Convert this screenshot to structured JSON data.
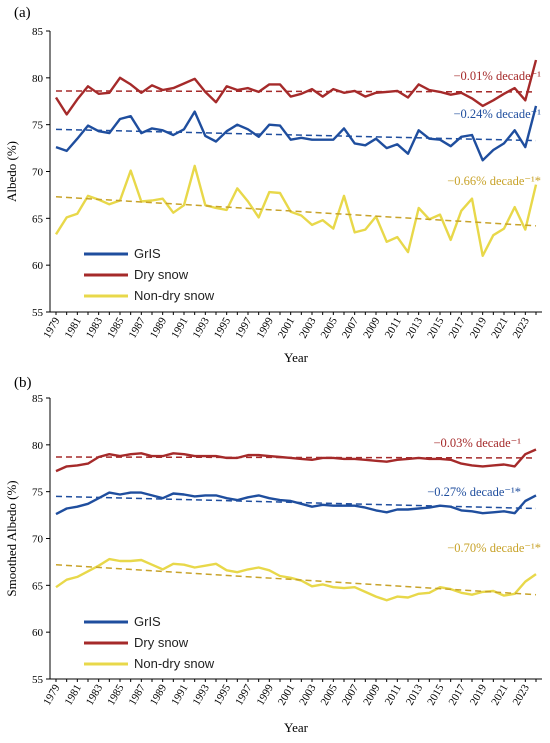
{
  "chart_data": [
    {
      "type": "line",
      "panel_label": "(a)",
      "xlabel": "Year",
      "ylabel": "Albedo (%)",
      "ylim": [
        55,
        85
      ],
      "yticks": [
        55,
        60,
        65,
        70,
        75,
        80,
        85
      ],
      "xlim": [
        1979,
        2024
      ],
      "x": [
        1979,
        1980,
        1981,
        1982,
        1983,
        1984,
        1985,
        1986,
        1987,
        1988,
        1989,
        1990,
        1991,
        1992,
        1993,
        1994,
        1995,
        1996,
        1997,
        1998,
        1999,
        2000,
        2001,
        2002,
        2003,
        2004,
        2005,
        2006,
        2007,
        2008,
        2009,
        2010,
        2011,
        2012,
        2013,
        2014,
        2015,
        2016,
        2017,
        2018,
        2019,
        2020,
        2021,
        2022,
        2023,
        2024
      ],
      "xtick_labels": [
        "1979",
        "1981",
        "1983",
        "1985",
        "1987",
        "1989",
        "1991",
        "1993",
        "1995",
        "1997",
        "1999",
        "2001",
        "2003",
        "2005",
        "2007",
        "2009",
        "2011",
        "2013",
        "2015",
        "2017",
        "2019",
        "2021",
        "2023"
      ],
      "legend": {
        "position": "lower-left",
        "entries": [
          "GrIS",
          "Dry snow",
          "Non-dry snow"
        ]
      },
      "series": [
        {
          "name": "GrIS",
          "color": "#1f4e9e",
          "values": [
            72.6,
            72.2,
            73.5,
            74.9,
            74.3,
            74.1,
            75.6,
            75.9,
            74.1,
            74.6,
            74.4,
            73.9,
            74.5,
            76.4,
            73.8,
            73.2,
            74.3,
            75.0,
            74.5,
            73.7,
            75.0,
            74.9,
            73.4,
            73.6,
            73.4,
            73.4,
            73.4,
            74.6,
            73.0,
            72.8,
            73.5,
            72.5,
            72.9,
            71.9,
            74.4,
            73.5,
            73.4,
            72.7,
            73.7,
            73.9,
            71.2,
            72.3,
            73.0,
            74.4,
            72.6,
            77.0
          ],
          "trend": {
            "start": 74.5,
            "end": 73.3,
            "label": "−0.24% decade⁻¹",
            "color": "#1f4e9e"
          }
        },
        {
          "name": "Dry snow",
          "color": "#a52a2a",
          "values": [
            77.9,
            76.1,
            77.7,
            79.1,
            78.3,
            78.4,
            80.0,
            79.3,
            78.4,
            79.2,
            78.7,
            78.9,
            79.4,
            79.9,
            78.5,
            77.4,
            79.1,
            78.7,
            78.9,
            78.5,
            79.3,
            79.3,
            78.0,
            78.3,
            78.8,
            78.0,
            78.8,
            78.4,
            78.6,
            78.0,
            78.4,
            78.5,
            78.6,
            77.9,
            79.3,
            78.7,
            78.5,
            78.2,
            78.4,
            77.8,
            77.0,
            77.6,
            78.3,
            78.9,
            77.6,
            81.9
          ],
          "trend": {
            "start": 78.6,
            "end": 78.5,
            "label": "−0.01% decade⁻¹",
            "color": "#a52a2a"
          }
        },
        {
          "name": "Non-dry snow",
          "color": "#e8d84a",
          "values": [
            63.3,
            65.1,
            65.5,
            67.4,
            67.0,
            66.5,
            66.9,
            70.1,
            66.8,
            66.9,
            67.1,
            65.6,
            66.4,
            70.6,
            66.4,
            66.1,
            65.9,
            68.2,
            66.8,
            65.1,
            67.8,
            67.7,
            65.7,
            65.3,
            64.3,
            64.8,
            63.9,
            67.4,
            63.5,
            63.8,
            65.2,
            62.5,
            63.0,
            61.4,
            66.1,
            64.9,
            65.4,
            62.7,
            65.8,
            67.1,
            61.0,
            63.2,
            63.9,
            66.2,
            63.8,
            68.6
          ],
          "trend": {
            "start": 67.3,
            "end": 64.2,
            "label": "−0.66% decade⁻¹*",
            "color": "#c8a32a"
          }
        }
      ]
    },
    {
      "type": "line",
      "panel_label": "(b)",
      "xlabel": "Year",
      "ylabel": "Smoothed Albedo (%)",
      "ylim": [
        55,
        85
      ],
      "yticks": [
        55,
        60,
        65,
        70,
        75,
        80,
        85
      ],
      "xlim": [
        1979,
        2024
      ],
      "x": [
        1979,
        1980,
        1981,
        1982,
        1983,
        1984,
        1985,
        1986,
        1987,
        1988,
        1989,
        1990,
        1991,
        1992,
        1993,
        1994,
        1995,
        1996,
        1997,
        1998,
        1999,
        2000,
        2001,
        2002,
        2003,
        2004,
        2005,
        2006,
        2007,
        2008,
        2009,
        2010,
        2011,
        2012,
        2013,
        2014,
        2015,
        2016,
        2017,
        2018,
        2019,
        2020,
        2021,
        2022,
        2023,
        2024
      ],
      "xtick_labels": [
        "1979",
        "1981",
        "1983",
        "1985",
        "1987",
        "1989",
        "1991",
        "1993",
        "1995",
        "1997",
        "1999",
        "2001",
        "2003",
        "2005",
        "2007",
        "2009",
        "2011",
        "2013",
        "2015",
        "2017",
        "2019",
        "2021",
        "2023"
      ],
      "legend": {
        "position": "lower-left",
        "entries": [
          "GrIS",
          "Dry snow",
          "Non-dry snow"
        ]
      },
      "series": [
        {
          "name": "GrIS",
          "color": "#1f4e9e",
          "values": [
            72.6,
            73.2,
            73.4,
            73.7,
            74.3,
            74.9,
            74.7,
            74.9,
            74.9,
            74.6,
            74.3,
            74.8,
            74.7,
            74.5,
            74.6,
            74.6,
            74.3,
            74.1,
            74.4,
            74.6,
            74.3,
            74.1,
            74.0,
            73.7,
            73.4,
            73.6,
            73.5,
            73.5,
            73.5,
            73.3,
            73.0,
            72.8,
            73.1,
            73.1,
            73.2,
            73.3,
            73.5,
            73.4,
            73.0,
            72.9,
            72.7,
            72.8,
            72.9,
            72.7,
            74.0,
            74.6
          ],
          "trend": {
            "start": 74.5,
            "end": 73.2,
            "label": "−0.27% decade⁻¹*",
            "color": "#1f4e9e"
          }
        },
        {
          "name": "Dry snow",
          "color": "#a52a2a",
          "values": [
            77.2,
            77.7,
            77.8,
            78.0,
            78.7,
            79.0,
            78.8,
            79.0,
            79.1,
            78.8,
            78.8,
            79.1,
            79.0,
            78.8,
            78.8,
            78.8,
            78.6,
            78.6,
            78.9,
            78.9,
            78.8,
            78.7,
            78.6,
            78.5,
            78.4,
            78.6,
            78.6,
            78.5,
            78.5,
            78.4,
            78.3,
            78.2,
            78.4,
            78.5,
            78.6,
            78.5,
            78.5,
            78.4,
            78.0,
            77.8,
            77.7,
            77.8,
            77.9,
            77.7,
            79.0,
            79.5
          ],
          "trend": {
            "start": 78.7,
            "end": 78.6,
            "label": "−0.03% decade⁻¹",
            "color": "#a52a2a"
          }
        },
        {
          "name": "Non-dry snow",
          "color": "#e8d84a",
          "values": [
            64.8,
            65.6,
            65.9,
            66.5,
            67.1,
            67.8,
            67.6,
            67.6,
            67.7,
            67.2,
            66.7,
            67.3,
            67.2,
            66.9,
            67.1,
            67.3,
            66.6,
            66.4,
            66.7,
            66.9,
            66.6,
            66.0,
            65.8,
            65.5,
            64.9,
            65.1,
            64.8,
            64.7,
            64.8,
            64.3,
            63.8,
            63.4,
            63.8,
            63.7,
            64.1,
            64.2,
            64.8,
            64.6,
            64.2,
            64.0,
            64.3,
            64.4,
            63.9,
            64.1,
            65.4,
            66.2
          ],
          "trend": {
            "start": 67.2,
            "end": 64.0,
            "label": "−0.70% decade⁻¹*",
            "color": "#c8a32a"
          }
        }
      ]
    }
  ]
}
